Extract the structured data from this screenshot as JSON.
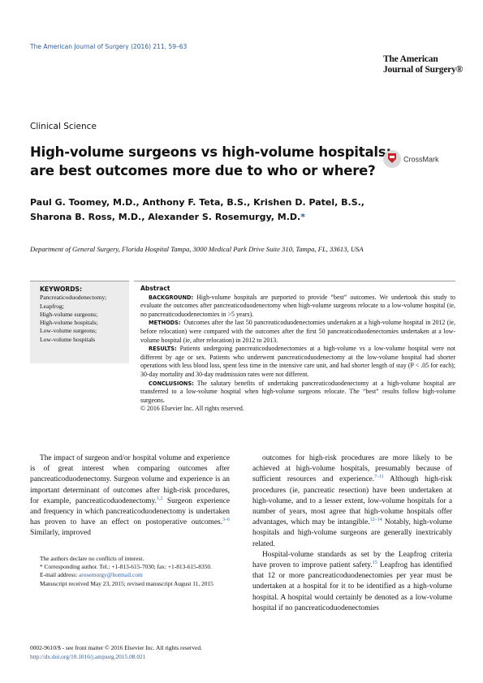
{
  "header": {
    "journal_line": "The American Journal of Surgery (2016) 211, 59–63",
    "logo_lines": [
      "The American",
      "Journal of Surgery®"
    ]
  },
  "section": "Clinical Science",
  "title_lines": [
    "High-volume surgeons vs high-volume hospitals:",
    "are best outcomes more due to who or where?"
  ],
  "crossmark": "CrossMark",
  "authors_lines": [
    "Paul G. Toomey, M.D., Anthony F. Teta, B.S., Krishen D. Patel, B.S.,",
    "Sharona B. Ross, M.D., Alexander S. Rosemurgy, M.D."
  ],
  "corresponding_mark": "*",
  "affiliation": "Department of General Surgery, Florida Hospital Tampa, 3000 Medical Park Drive Suite 310, Tampa, FL, 33613, USA",
  "keywords": {
    "heading": "KEYWORDS:",
    "items": [
      "Pancreaticoduodenectomy;",
      "Leapfrog;",
      "High-volume surgeons;",
      "High-volume hospitals;",
      "Low-volume surgeons;",
      "Low-volume hospitals"
    ]
  },
  "abstract": {
    "heading": "Abstract",
    "paragraphs": [
      {
        "label": "BACKGROUND:",
        "text": "High-volume hospitals are purported to provide “best” outcomes. We undertook this study to evaluate the outcomes after pancreaticoduodenectomy when high-volume surgeons relocate to a low-volume hospital (ie, no pancreaticoduodenectomies in >5 years)."
      },
      {
        "label": "METHODS:",
        "text": "Outcomes after the last 50 pancreaticoduodenectomies undertaken at a high-volume hospital in 2012 (ie, before relocation) were compared with the outcomes after the first 50 pancreaticoduodenectomies undertaken at a low-volume hospital (ie, after relocation) in 2012 to 2013."
      },
      {
        "label": "RESULTS:",
        "text": "Patients undergoing pancreaticoduodenectomies at a high-volume vs a low-volume hospital were not different by age or sex. Patients who underwent pancreaticoduodenectomy at the low-volume hospital had shorter operations with less blood loss, spent less time in the intensive care unit, and had shorter length of stay (P < .05 for each); 30-day mortality and 30-day readmission rates were not different."
      },
      {
        "label": "CONCLUSIONS:",
        "text": "The salutary benefits of undertaking pancreaticoduodenectomy at a high-volume hospital are transferred to a low-volume hospital when high-volume surgeons relocate. The “best” results follow high-volume surgeons."
      }
    ],
    "copyright": "© 2016 Elsevier Inc. All rights reserved."
  },
  "body": {
    "left": [
      [
        {
          "t": "The impact of surgeon and/or hospital volume and experience is of great interest when comparing outcomes after pancreaticoduodenectomy. Surgeon volume and experience is an important determinant of outcomes after high-risk procedures, for example, pancreaticoduodenectomy."
        },
        {
          "sup": "1,2"
        },
        {
          "t": " Surgeon experience and frequency in which pancreaticoduodenectomy is undertaken has proven to have an effect on postoperative outcomes."
        },
        {
          "sup": "3–6"
        },
        {
          "t": " Similarly, improved"
        }
      ]
    ],
    "right": [
      [
        {
          "t": "outcomes for high-risk procedures are more likely to be achieved at high-volume hospitals, presumably because of sufficient resources and experience."
        },
        {
          "sup": "7–11"
        },
        {
          "t": " Although high-risk procedures (ie, pancreatic resection) have been undertaken at high-volume, and to a lesser extent, low-volume hospitals for a number of years, most agree that high-volume hospitals offer advantages, which may be intangible."
        },
        {
          "sup": "12–14"
        },
        {
          "t": " Notably, high-volume hospitals and high-volume surgeons are generally inextricably related."
        }
      ],
      [
        {
          "t": "Hospital-volume standards as set by the Leapfrog criteria have proven to improve patient safety."
        },
        {
          "sup": "15"
        },
        {
          "t": " Leapfrog has identified that 12 or more pancreaticoduodenectomies per year must be undertaken at a hospital for it to be identified as a high-volume hospital. A hospital would certainly be denoted as a low-volume hospital if no pancreaticoduodenectomies"
        }
      ]
    ]
  },
  "footnotes": {
    "conflicts": "The authors declare no conflicts of interest.",
    "corresponding": "* Corresponding author. Tel.: +1-813-615-7030; fax: +1-813-615-8350.",
    "email_label": "E-mail address: ",
    "email": "arosemurgy@hotmail.com",
    "received": "Manuscript received May 23, 2015; revised manuscript August 11, 2015"
  },
  "footer": {
    "issn": "0002-9610/$ - see front matter © 2016 Elsevier Inc. All rights reserved.",
    "doi": "http://dx.doi.org/10.1016/j.amjsurg.2015.08.021"
  }
}
